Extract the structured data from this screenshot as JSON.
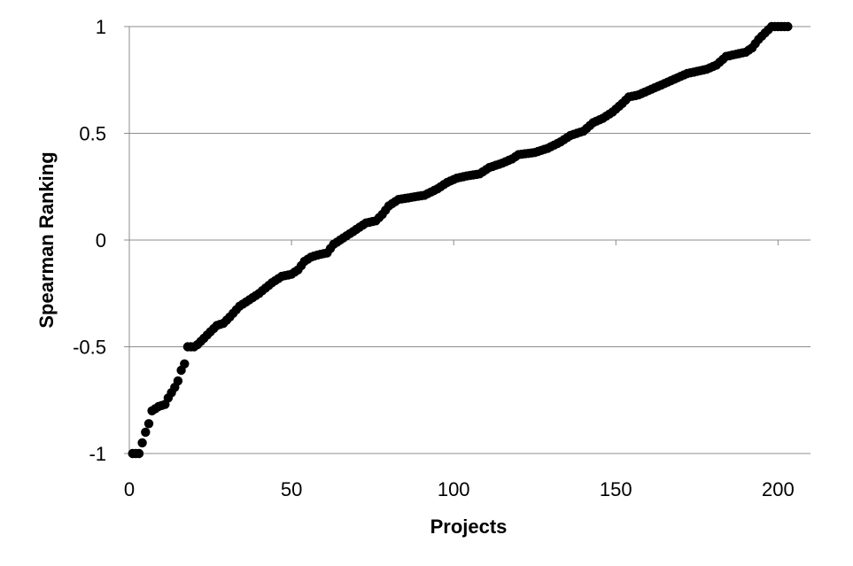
{
  "chart_data": {
    "type": "scatter",
    "title": "",
    "xlabel": "Projects",
    "ylabel": "Spearman Ranking",
    "xlim": [
      0,
      210
    ],
    "ylim": [
      -1,
      1
    ],
    "x_ticks": [
      "0",
      "50",
      "100",
      "150",
      "200"
    ],
    "y_ticks": [
      "1",
      "0.5",
      "0",
      "-0.5",
      "-1"
    ],
    "grid": "horizontal",
    "legend": "none",
    "marker_color": "#000000",
    "anchors": [
      [
        1,
        -1.0
      ],
      [
        3,
        -1.0
      ],
      [
        4,
        -0.95
      ],
      [
        5,
        -0.9
      ],
      [
        6,
        -0.86
      ],
      [
        7,
        -0.8
      ],
      [
        9,
        -0.78
      ],
      [
        11,
        -0.77
      ],
      [
        12,
        -0.74
      ],
      [
        14,
        -0.69
      ],
      [
        15,
        -0.66
      ],
      [
        16,
        -0.61
      ],
      [
        17,
        -0.58
      ],
      [
        18,
        -0.5
      ],
      [
        20,
        -0.5
      ],
      [
        21,
        -0.49
      ],
      [
        23,
        -0.46
      ],
      [
        25,
        -0.43
      ],
      [
        27,
        -0.4
      ],
      [
        29,
        -0.39
      ],
      [
        31,
        -0.36
      ],
      [
        34,
        -0.31
      ],
      [
        36,
        -0.29
      ],
      [
        40,
        -0.25
      ],
      [
        44,
        -0.2
      ],
      [
        47,
        -0.17
      ],
      [
        50,
        -0.16
      ],
      [
        52,
        -0.14
      ],
      [
        54,
        -0.1
      ],
      [
        56,
        -0.08
      ],
      [
        58,
        -0.07
      ],
      [
        61,
        -0.06
      ],
      [
        63,
        -0.02
      ],
      [
        65,
        0.0
      ],
      [
        67,
        0.02
      ],
      [
        70,
        0.05
      ],
      [
        73,
        0.08
      ],
      [
        76,
        0.09
      ],
      [
        78,
        0.12
      ],
      [
        80,
        0.16
      ],
      [
        83,
        0.19
      ],
      [
        87,
        0.2
      ],
      [
        91,
        0.21
      ],
      [
        95,
        0.24
      ],
      [
        98,
        0.27
      ],
      [
        101,
        0.29
      ],
      [
        104,
        0.3
      ],
      [
        108,
        0.31
      ],
      [
        111,
        0.34
      ],
      [
        115,
        0.36
      ],
      [
        118,
        0.38
      ],
      [
        120,
        0.4
      ],
      [
        125,
        0.41
      ],
      [
        129,
        0.43
      ],
      [
        133,
        0.46
      ],
      [
        136,
        0.49
      ],
      [
        140,
        0.51
      ],
      [
        143,
        0.55
      ],
      [
        146,
        0.57
      ],
      [
        149,
        0.6
      ],
      [
        152,
        0.64
      ],
      [
        154,
        0.67
      ],
      [
        157,
        0.68
      ],
      [
        160,
        0.7
      ],
      [
        163,
        0.72
      ],
      [
        166,
        0.74
      ],
      [
        169,
        0.76
      ],
      [
        172,
        0.78
      ],
      [
        175,
        0.79
      ],
      [
        178,
        0.8
      ],
      [
        181,
        0.82
      ],
      [
        184,
        0.86
      ],
      [
        187,
        0.87
      ],
      [
        190,
        0.88
      ],
      [
        192,
        0.9
      ],
      [
        194,
        0.94
      ],
      [
        196,
        0.97
      ],
      [
        198,
        1.0
      ],
      [
        203,
        1.0
      ]
    ]
  }
}
